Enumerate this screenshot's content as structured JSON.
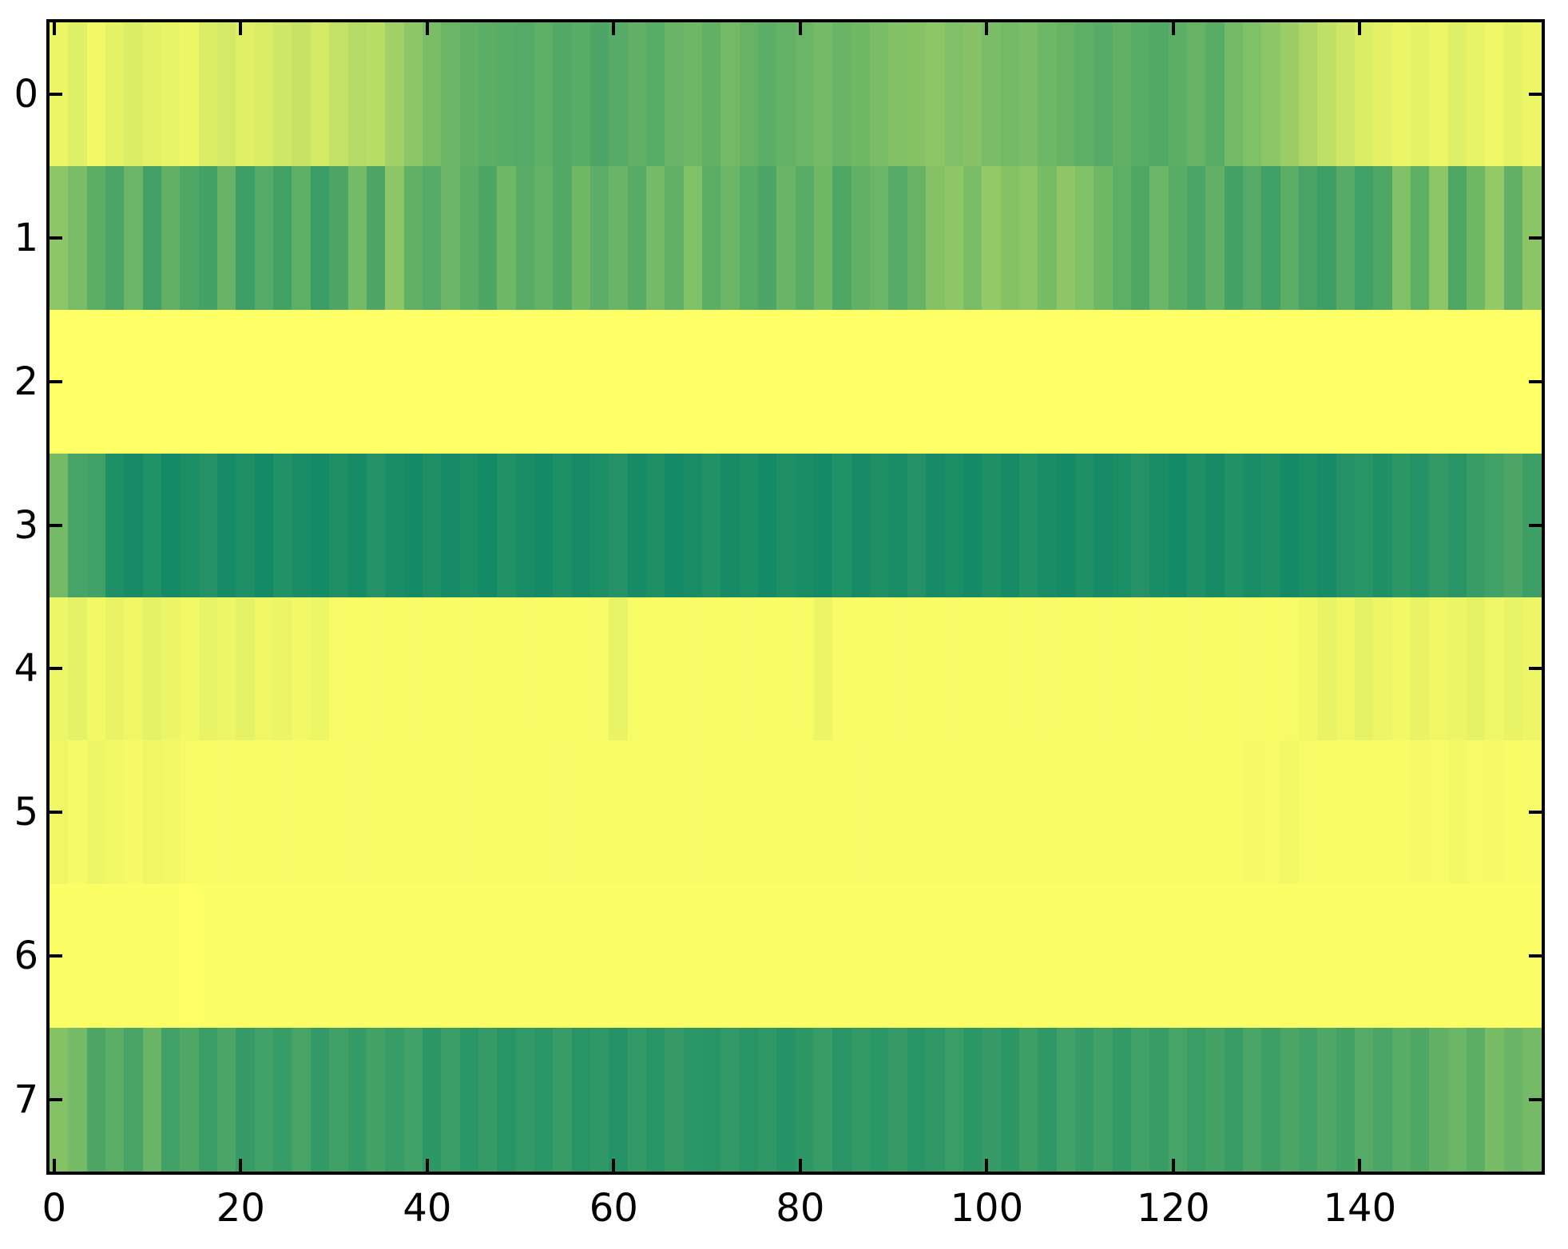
{
  "figure": {
    "kind": "matplotlib-heatmap-figure",
    "background_color": "#ffffff",
    "spine_color": "#000000",
    "tick_color": "#000000",
    "tick_direction": "in"
  },
  "chart_data": {
    "type": "heatmap",
    "title": "",
    "xlabel": "",
    "ylabel": "",
    "colormap": {
      "name": "summer",
      "low_color": "#008066",
      "high_color": "#ffff66",
      "formula": "rgb(255*t, 128+127*t, 102)"
    },
    "value_range": [
      0,
      1
    ],
    "n_rows": 8,
    "n_cols": 160,
    "x_sample_step": 2,
    "x_extent": [
      -0.5,
      159.5
    ],
    "y_extent": [
      -0.5,
      7.5
    ],
    "x_axis": {
      "tick_values": [
        0,
        20,
        40,
        60,
        80,
        100,
        120,
        140
      ],
      "tick_labels": [
        "0",
        "20",
        "40",
        "60",
        "80",
        "100",
        "120",
        "140"
      ]
    },
    "y_axis": {
      "tick_values": [
        0,
        1,
        2,
        3,
        4,
        5,
        6,
        7
      ],
      "tick_labels": [
        "0",
        "1",
        "2",
        "3",
        "4",
        "5",
        "6",
        "7"
      ]
    },
    "rows": [
      [
        0.92,
        0.88,
        0.95,
        0.9,
        0.86,
        0.89,
        0.91,
        0.93,
        0.86,
        0.83,
        0.88,
        0.85,
        0.81,
        0.78,
        0.83,
        0.76,
        0.71,
        0.73,
        0.63,
        0.55,
        0.48,
        0.42,
        0.38,
        0.36,
        0.35,
        0.33,
        0.37,
        0.32,
        0.35,
        0.3,
        0.34,
        0.38,
        0.35,
        0.41,
        0.43,
        0.38,
        0.45,
        0.4,
        0.36,
        0.39,
        0.42,
        0.46,
        0.41,
        0.44,
        0.48,
        0.51,
        0.53,
        0.55,
        0.5,
        0.53,
        0.48,
        0.45,
        0.48,
        0.43,
        0.4,
        0.37,
        0.34,
        0.38,
        0.35,
        0.32,
        0.36,
        0.4,
        0.35,
        0.45,
        0.5,
        0.55,
        0.61,
        0.68,
        0.75,
        0.81,
        0.86,
        0.89,
        0.92,
        0.9,
        0.93,
        0.88,
        0.91,
        0.94,
        0.9,
        0.93
      ],
      [
        0.55,
        0.48,
        0.36,
        0.29,
        0.42,
        0.26,
        0.38,
        0.31,
        0.27,
        0.4,
        0.24,
        0.33,
        0.26,
        0.37,
        0.23,
        0.3,
        0.46,
        0.3,
        0.55,
        0.38,
        0.33,
        0.42,
        0.36,
        0.3,
        0.43,
        0.35,
        0.39,
        0.32,
        0.44,
        0.36,
        0.41,
        0.34,
        0.46,
        0.38,
        0.5,
        0.36,
        0.42,
        0.35,
        0.3,
        0.41,
        0.35,
        0.44,
        0.31,
        0.38,
        0.42,
        0.34,
        0.4,
        0.52,
        0.56,
        0.48,
        0.58,
        0.52,
        0.55,
        0.47,
        0.56,
        0.5,
        0.44,
        0.37,
        0.31,
        0.42,
        0.35,
        0.29,
        0.38,
        0.27,
        0.33,
        0.25,
        0.36,
        0.28,
        0.24,
        0.34,
        0.26,
        0.31,
        0.5,
        0.37,
        0.55,
        0.31,
        0.44,
        0.58,
        0.38,
        0.54
      ],
      [
        1.0,
        1.0,
        1.0,
        1.0,
        1.0,
        1.0,
        1.0,
        1.0,
        1.0,
        1.0,
        1.0,
        1.0,
        1.0,
        1.0,
        1.0,
        1.0,
        1.0,
        1.0,
        1.0,
        1.0,
        1.0,
        1.0,
        1.0,
        1.0,
        1.0,
        1.0,
        1.0,
        1.0,
        1.0,
        1.0,
        1.0,
        1.0,
        1.0,
        1.0,
        1.0,
        1.0,
        1.0,
        1.0,
        1.0,
        1.0,
        1.0,
        1.0,
        1.0,
        1.0,
        1.0,
        1.0,
        1.0,
        1.0,
        1.0,
        1.0,
        1.0,
        1.0,
        1.0,
        1.0,
        1.0,
        1.0,
        1.0,
        1.0,
        1.0,
        1.0,
        1.0,
        1.0,
        1.0,
        1.0,
        1.0,
        1.0,
        1.0,
        1.0,
        1.0,
        1.0,
        1.0,
        1.0,
        1.0,
        1.0,
        1.0,
        1.0,
        1.0,
        1.0,
        1.0,
        1.0
      ],
      [
        0.45,
        0.28,
        0.26,
        0.12,
        0.09,
        0.13,
        0.08,
        0.11,
        0.14,
        0.09,
        0.12,
        0.08,
        0.13,
        0.1,
        0.08,
        0.12,
        0.09,
        0.14,
        0.1,
        0.08,
        0.12,
        0.09,
        0.11,
        0.08,
        0.13,
        0.1,
        0.08,
        0.12,
        0.09,
        0.11,
        0.14,
        0.09,
        0.12,
        0.08,
        0.1,
        0.13,
        0.09,
        0.11,
        0.08,
        0.12,
        0.1,
        0.08,
        0.13,
        0.09,
        0.12,
        0.1,
        0.14,
        0.09,
        0.11,
        0.08,
        0.12,
        0.09,
        0.13,
        0.1,
        0.08,
        0.12,
        0.09,
        0.11,
        0.14,
        0.1,
        0.08,
        0.12,
        0.09,
        0.13,
        0.1,
        0.12,
        0.08,
        0.11,
        0.09,
        0.14,
        0.16,
        0.12,
        0.18,
        0.14,
        0.2,
        0.16,
        0.22,
        0.26,
        0.3,
        0.24
      ],
      [
        0.93,
        0.9,
        0.95,
        0.91,
        0.94,
        0.9,
        0.92,
        0.95,
        0.91,
        0.93,
        0.9,
        0.94,
        0.92,
        0.95,
        0.93,
        0.97,
        0.98,
        0.97,
        0.98,
        0.97,
        0.98,
        0.98,
        0.97,
        0.98,
        0.98,
        0.97,
        0.98,
        0.98,
        0.98,
        0.97,
        0.91,
        0.97,
        0.98,
        0.98,
        0.97,
        0.98,
        0.98,
        0.97,
        0.98,
        0.98,
        0.97,
        0.92,
        0.97,
        0.98,
        0.98,
        0.97,
        0.98,
        0.98,
        0.97,
        0.98,
        0.98,
        0.97,
        0.98,
        0.97,
        0.98,
        0.98,
        0.97,
        0.98,
        0.97,
        0.98,
        0.98,
        0.97,
        0.98,
        0.98,
        0.97,
        0.98,
        0.97,
        0.95,
        0.91,
        0.94,
        0.9,
        0.93,
        0.95,
        0.91,
        0.94,
        0.92,
        0.9,
        0.94,
        0.91,
        0.93
      ],
      [
        0.94,
        0.96,
        0.93,
        0.95,
        0.96,
        0.94,
        0.95,
        0.97,
        0.98,
        0.97,
        0.98,
        0.98,
        0.97,
        0.98,
        0.98,
        0.98,
        0.97,
        0.98,
        0.98,
        0.98,
        0.98,
        0.98,
        0.97,
        0.98,
        0.98,
        0.98,
        0.98,
        0.97,
        0.98,
        0.98,
        0.98,
        0.98,
        0.98,
        0.98,
        0.97,
        0.98,
        0.98,
        0.98,
        0.98,
        0.98,
        0.98,
        0.98,
        0.98,
        0.97,
        0.98,
        0.98,
        0.98,
        0.98,
        0.98,
        0.98,
        0.98,
        0.98,
        0.98,
        0.98,
        0.98,
        0.98,
        0.98,
        0.98,
        0.98,
        0.98,
        0.98,
        0.98,
        0.98,
        0.98,
        0.96,
        0.97,
        0.95,
        0.97,
        0.98,
        0.98,
        0.98,
        0.98,
        0.98,
        0.96,
        0.97,
        0.95,
        0.97,
        0.96,
        0.98,
        0.97
      ],
      [
        0.99,
        0.99,
        0.99,
        0.99,
        0.99,
        0.99,
        0.99,
        1.0,
        0.99,
        0.99,
        0.99,
        0.99,
        0.99,
        0.99,
        0.99,
        0.99,
        0.99,
        0.99,
        0.99,
        0.99,
        0.99,
        0.99,
        0.99,
        0.99,
        0.99,
        0.99,
        0.99,
        0.99,
        0.99,
        0.99,
        0.99,
        0.99,
        0.99,
        0.99,
        0.99,
        0.99,
        0.99,
        0.99,
        0.99,
        0.99,
        0.99,
        0.99,
        0.99,
        0.99,
        0.99,
        0.99,
        0.99,
        0.99,
        0.99,
        0.99,
        0.99,
        0.99,
        0.99,
        0.99,
        0.99,
        0.99,
        0.99,
        0.99,
        0.99,
        0.99,
        0.99,
        0.99,
        0.99,
        0.99,
        0.99,
        0.99,
        0.99,
        0.99,
        0.99,
        0.99,
        0.99,
        0.99,
        0.99,
        0.99,
        0.99,
        0.99,
        0.99,
        0.99,
        0.99,
        0.99
      ],
      [
        0.52,
        0.46,
        0.3,
        0.36,
        0.28,
        0.41,
        0.26,
        0.31,
        0.23,
        0.29,
        0.21,
        0.26,
        0.22,
        0.28,
        0.2,
        0.25,
        0.21,
        0.27,
        0.22,
        0.26,
        0.18,
        0.23,
        0.17,
        0.21,
        0.16,
        0.2,
        0.17,
        0.22,
        0.16,
        0.19,
        0.15,
        0.2,
        0.16,
        0.21,
        0.17,
        0.16,
        0.2,
        0.16,
        0.19,
        0.15,
        0.18,
        0.22,
        0.16,
        0.2,
        0.17,
        0.21,
        0.16,
        0.19,
        0.23,
        0.17,
        0.21,
        0.18,
        0.24,
        0.19,
        0.26,
        0.21,
        0.25,
        0.2,
        0.26,
        0.22,
        0.28,
        0.23,
        0.27,
        0.22,
        0.29,
        0.24,
        0.3,
        0.26,
        0.31,
        0.27,
        0.33,
        0.29,
        0.35,
        0.31,
        0.38,
        0.42,
        0.36,
        0.47,
        0.41,
        0.45
      ]
    ]
  }
}
